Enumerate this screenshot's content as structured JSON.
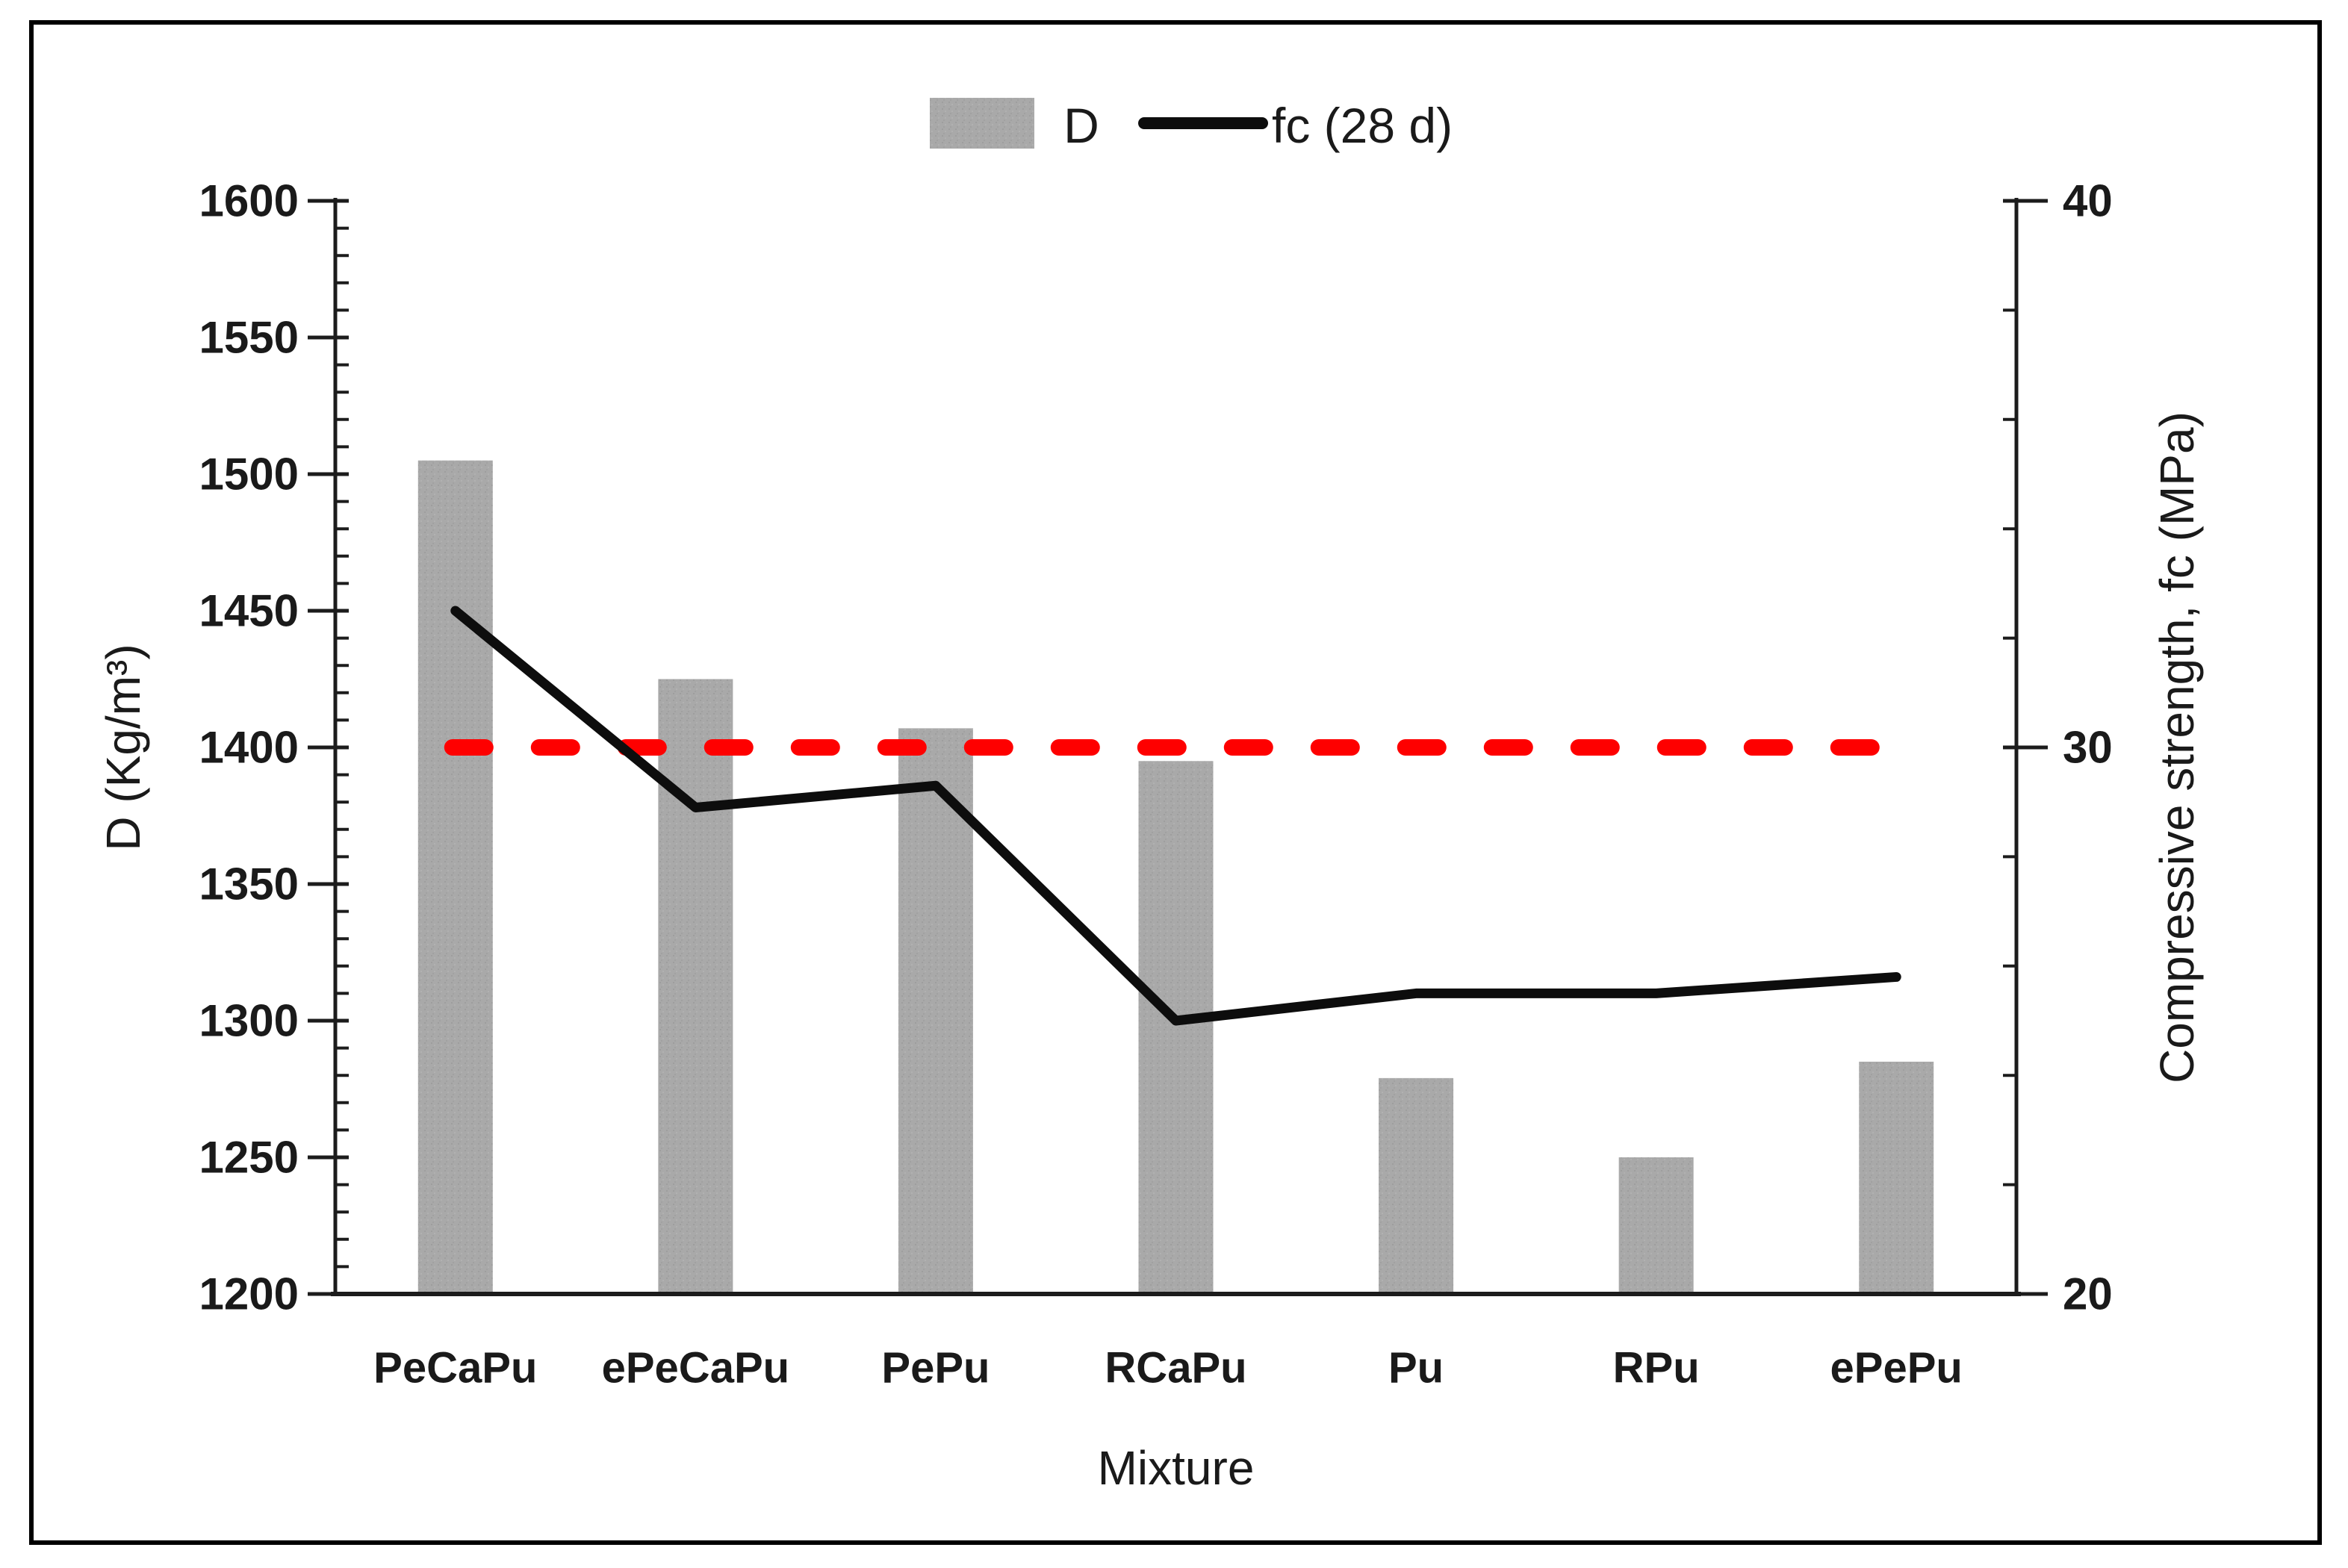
{
  "figure": {
    "background": "#ffffff",
    "border_color": "#000000"
  },
  "legend": {
    "position": "top-center",
    "items": [
      {
        "label": "D",
        "swatch": "bar-swatch",
        "color": "#a9a9a9"
      },
      {
        "label": "fc (28 d)",
        "swatch": "line-swatch",
        "color": "#000000"
      }
    ]
  },
  "chart_data": {
    "type": "combo",
    "categories": [
      "PeCaPu",
      "ePeCaPu",
      "PePu",
      "RCaPu",
      "Pu",
      "RPu",
      "ePePu"
    ],
    "series": [
      {
        "name": "D",
        "type": "bar",
        "axis": "left",
        "color": "#a9a9a9",
        "values": [
          1505,
          1425,
          1407,
          1395,
          1279,
          1250,
          1285
        ]
      },
      {
        "name": "fc (28 d)",
        "type": "line",
        "axis": "right",
        "color": "#0d0d0d",
        "values": [
          32.5,
          28.9,
          29.3,
          25.0,
          25.5,
          25.5,
          25.8
        ]
      }
    ],
    "ref_line": {
      "description": "red dashed horizontal target line",
      "axis": "left",
      "value": 1400,
      "right_axis_value": 30,
      "color": "#fe0000",
      "style": "dashed"
    },
    "left_axis": {
      "label": "D (Kg/m³)",
      "min": 1200,
      "max": 1600,
      "major_step": 50,
      "minor_step": 10,
      "tick_labels": [
        "1600",
        "1550",
        "1500",
        "1450",
        "1400",
        "1350",
        "1300",
        "1250",
        "1200"
      ]
    },
    "right_axis": {
      "label": "Compressive strength, fc (MPa)",
      "min": 20,
      "max": 40,
      "major_step": 10,
      "minor_step": 2,
      "tick_labels": [
        "40",
        "30",
        "20"
      ]
    },
    "x_axis": {
      "label": "Mixture"
    },
    "grid": "off",
    "legend_position": "top"
  }
}
